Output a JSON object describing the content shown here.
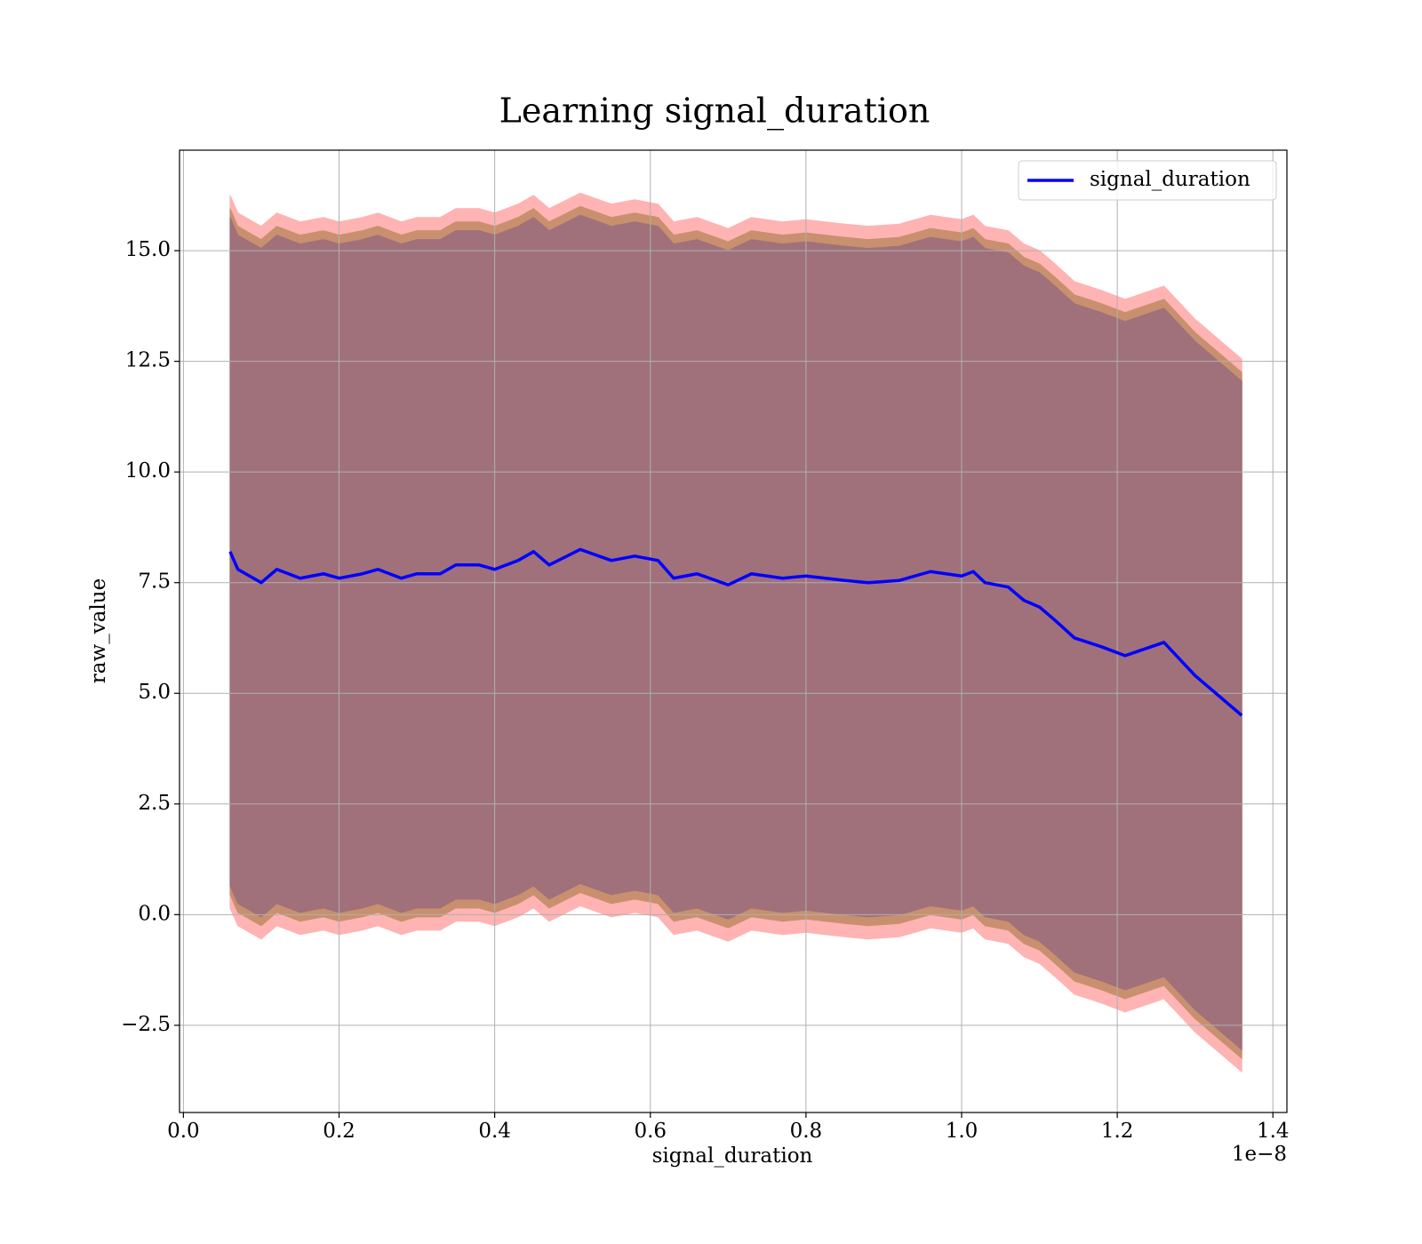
{
  "chart_data": {
    "type": "line",
    "title": "Learning signal_duration",
    "xlabel": "signal_duration",
    "ylabel": "raw_value",
    "x_offset_label": "1e−8",
    "x": [
      0.06,
      0.07,
      0.08,
      0.1,
      0.12,
      0.15,
      0.18,
      0.2,
      0.23,
      0.25,
      0.28,
      0.3,
      0.33,
      0.35,
      0.38,
      0.4,
      0.43,
      0.45,
      0.47,
      0.51,
      0.55,
      0.58,
      0.61,
      0.63,
      0.66,
      0.7,
      0.73,
      0.77,
      0.8,
      0.85,
      0.88,
      0.92,
      0.96,
      1.0,
      1.015,
      1.03,
      1.06,
      1.08,
      1.1,
      1.12,
      1.145,
      1.18,
      1.21,
      1.26,
      1.3,
      1.36
    ],
    "series": [
      {
        "name": "signal_duration",
        "color": "#0000ff",
        "values": [
          8.2,
          7.8,
          7.7,
          7.5,
          7.8,
          7.6,
          7.7,
          7.6,
          7.7,
          7.8,
          7.6,
          7.7,
          7.7,
          7.9,
          7.9,
          7.8,
          8.0,
          8.2,
          7.9,
          8.25,
          8.0,
          8.1,
          8.0,
          7.6,
          7.7,
          7.45,
          7.7,
          7.6,
          7.65,
          7.55,
          7.5,
          7.55,
          7.75,
          7.65,
          7.75,
          7.5,
          7.4,
          7.1,
          6.95,
          6.65,
          6.25,
          6.05,
          5.85,
          6.15,
          5.4,
          4.5
        ]
      }
    ],
    "bands": [
      {
        "color": "#ffb3b3",
        "error": 8.05
      },
      {
        "color": "#c8906e",
        "error": 7.75
      },
      {
        "color": "#a0717a",
        "error": 7.55
      }
    ],
    "xlim": [
      -0.005,
      1.418
    ],
    "ylim": [
      -4.47,
      17.27
    ],
    "xticks": [
      {
        "value": 0,
        "label": "0.0"
      },
      0.2,
      0.4,
      0.6,
      0.8,
      {
        "value": 1,
        "label": "1.0"
      },
      1.2,
      1.4
    ],
    "yticks": [
      {
        "value": -2.5,
        "label": "−2.5"
      },
      {
        "value": 0,
        "label": "0.0"
      },
      2.5,
      {
        "value": 5,
        "label": "5.0"
      },
      7.5,
      {
        "value": 10,
        "label": "10.0"
      },
      12.5,
      {
        "value": 15,
        "label": "15.0"
      }
    ],
    "grid": true,
    "legend": "upper right"
  }
}
